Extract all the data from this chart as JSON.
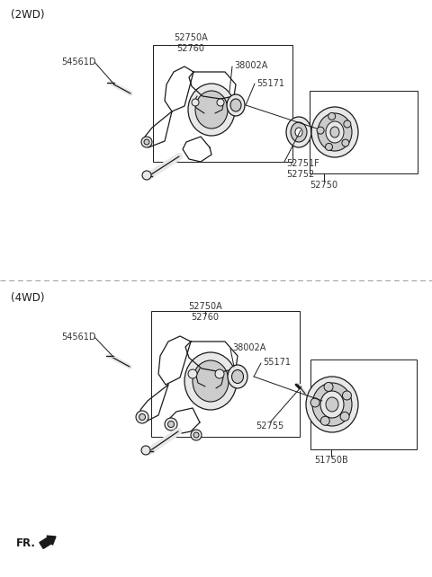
{
  "bg_color": "#ffffff",
  "line_color": "#1a1a1a",
  "gray1": "#cccccc",
  "gray2": "#e8e8e8",
  "gray3": "#aaaaaa",
  "section_2wd": "(2WD)",
  "section_4wd": "(4WD)",
  "fr_label": "FR.",
  "dashed_color": "#999999",
  "label_color": "#333333",
  "fs_label": 7.0,
  "fs_section": 8.5,
  "fs_fr": 8.5
}
